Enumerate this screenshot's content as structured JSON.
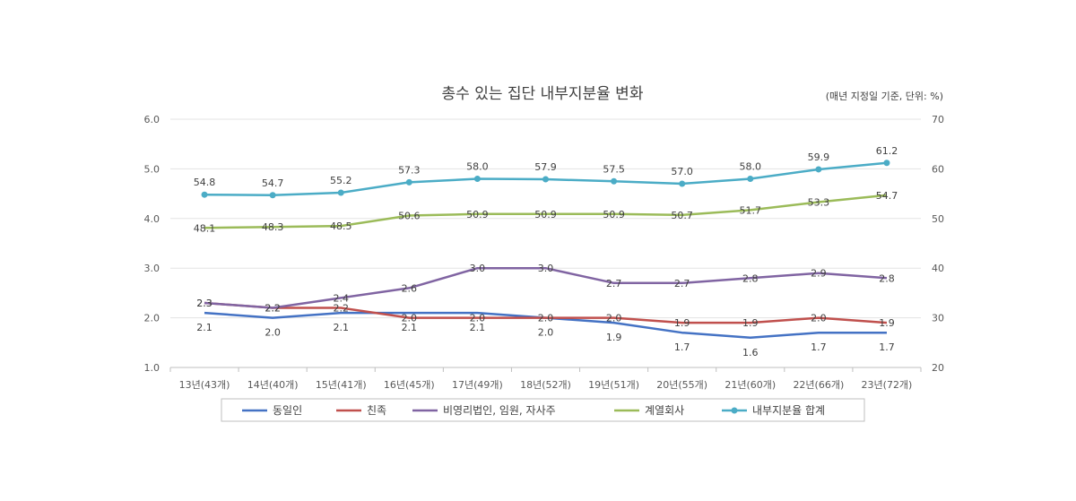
{
  "chart_data": {
    "type": "line",
    "title": "총수 있는 집단 내부지분율 변화",
    "unit_note": "(매년 지정일 기준, 단위: %)",
    "categories": [
      "13년(43개)",
      "14년(40개)",
      "15년(41개)",
      "16년(45개)",
      "17년(49개)",
      "18년(52개)",
      "19년(51개)",
      "20년(55개)",
      "21년(60개)",
      "22년(66개)",
      "23년(72개)"
    ],
    "left_axis": {
      "ylim": [
        1.0,
        6.0
      ],
      "ticks": [
        "1.0",
        "2.0",
        "3.0",
        "4.0",
        "5.0",
        "6.0"
      ]
    },
    "right_axis": {
      "ylim": [
        20,
        70
      ],
      "ticks": [
        "20",
        "30",
        "40",
        "50",
        "60",
        "70"
      ]
    },
    "grid": true,
    "legend_position": "bottom",
    "series": [
      {
        "name": "동일인",
        "axis": "left",
        "color": "#4472C4",
        "values": [
          2.1,
          2.0,
          2.1,
          2.1,
          2.1,
          2.0,
          1.9,
          1.7,
          1.6,
          1.7,
          1.7
        ],
        "labels": [
          "2.1",
          "2.0",
          "2.1",
          "2.1",
          "2.1",
          "2.0",
          "1.9",
          "1.7",
          "1.6",
          "1.7",
          "1.7"
        ]
      },
      {
        "name": "친족",
        "axis": "left",
        "color": "#C0504D",
        "values": [
          2.3,
          2.2,
          2.2,
          2.0,
          2.0,
          2.0,
          2.0,
          1.9,
          1.9,
          2.0,
          1.9
        ],
        "labels": [
          "2.3",
          "2.2",
          "2.2",
          "2.0",
          "2.0",
          "2.0",
          "2.0",
          "1.9",
          "1.9",
          "2.0",
          "1.9"
        ]
      },
      {
        "name": "비영리법인, 임원, 자사주",
        "axis": "left",
        "color": "#8064A2",
        "values": [
          2.3,
          2.2,
          2.4,
          2.6,
          3.0,
          3.0,
          2.7,
          2.7,
          2.8,
          2.9,
          2.8
        ],
        "labels": [
          "2.3",
          "2.2",
          "2.4",
          "2.6",
          "3.0",
          "3.0",
          "2.7",
          "2.7",
          "2.8",
          "2.9",
          "2.8"
        ]
      },
      {
        "name": "계열회사",
        "axis": "right",
        "color": "#9BBB59",
        "values": [
          48.1,
          48.3,
          48.5,
          50.6,
          50.9,
          50.9,
          50.9,
          50.7,
          51.7,
          53.3,
          54.7
        ],
        "labels": [
          "48.1",
          "48.3",
          "48.5",
          "50.6",
          "50.9",
          "50.9",
          "50.9",
          "50.7",
          "51.7",
          "53.3",
          "54.7"
        ]
      },
      {
        "name": "내부지분율 합계",
        "axis": "right",
        "color": "#4BACC6",
        "values": [
          54.8,
          54.7,
          55.2,
          57.3,
          58.0,
          57.9,
          57.5,
          57.0,
          58.0,
          59.9,
          61.2
        ],
        "labels": [
          "54.8",
          "54.7",
          "55.2",
          "57.3",
          "58.0",
          "57.9",
          "57.5",
          "57.0",
          "58.0",
          "59.9",
          "61.2"
        ]
      }
    ]
  }
}
